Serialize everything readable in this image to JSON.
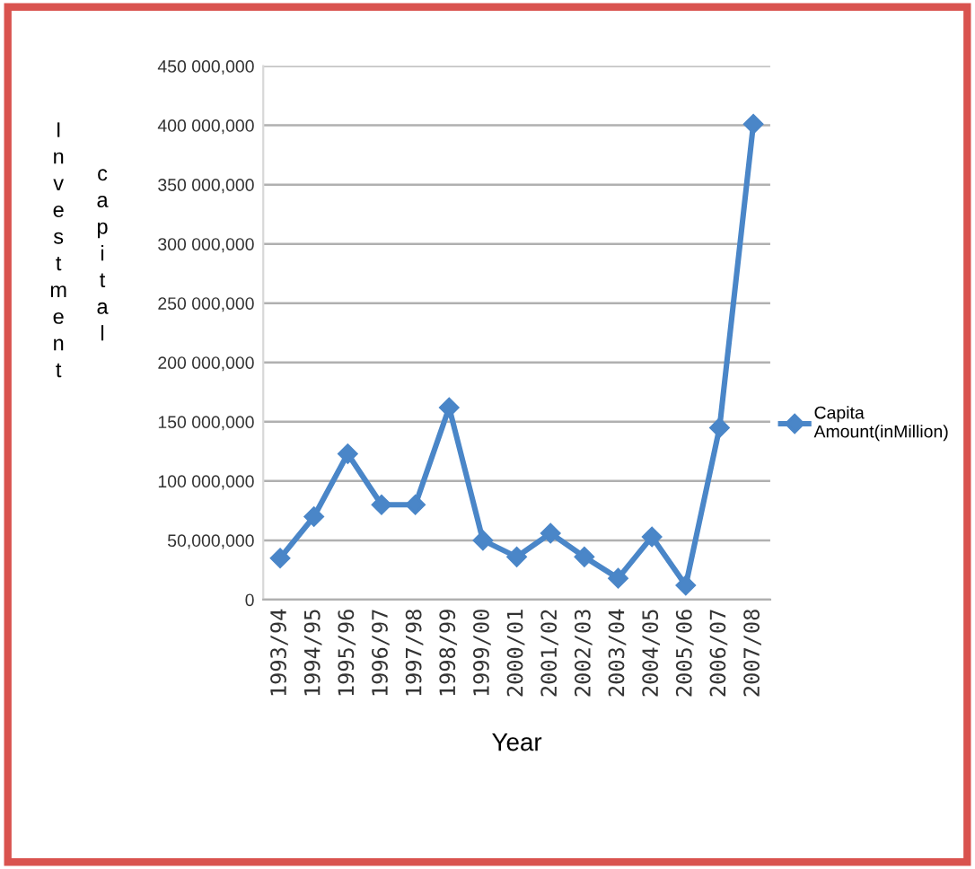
{
  "chart_data": {
    "type": "line",
    "xlabel": "Year",
    "ylabel": "Investment capital",
    "categories": [
      "1993/94",
      "1994/95",
      "1995/96",
      "1996/97",
      "1997/98",
      "1998/99",
      "1999/00",
      "2000/01",
      "2001/02",
      "2002/03",
      "2003/04",
      "2004/05",
      "2005/06",
      "2006/07",
      "2007/08"
    ],
    "series": [
      {
        "name": "Capita Amount(inMillion)",
        "color": "#4a86c8",
        "values": [
          35000000,
          70000000,
          123000000,
          80000000,
          80000000,
          162000000,
          50000000,
          36000000,
          56000000,
          36000000,
          18000000,
          53000000,
          12000000,
          145000000,
          401000000
        ]
      }
    ],
    "ylim": [
      0,
      450000000
    ],
    "yticks": [
      0,
      {
        "value": 50000000,
        "label": "50,000,000"
      },
      {
        "value": 100000000,
        "label": "100 000,000"
      },
      {
        "value": 150000000,
        "label": "150 000,000"
      },
      {
        "value": 200000000,
        "label": "200 000,000"
      },
      {
        "value": 250000000,
        "label": "250 000,000"
      },
      {
        "value": 300000000,
        "label": "300 000,000"
      },
      {
        "value": 350000000,
        "label": "350 000,000"
      },
      {
        "value": 400000000,
        "label": "400 000,000"
      },
      {
        "value": 450000000,
        "label": "450 000,000"
      }
    ],
    "grid": "y",
    "legend": "right",
    "marker": "diamond",
    "line_style": "solid"
  }
}
